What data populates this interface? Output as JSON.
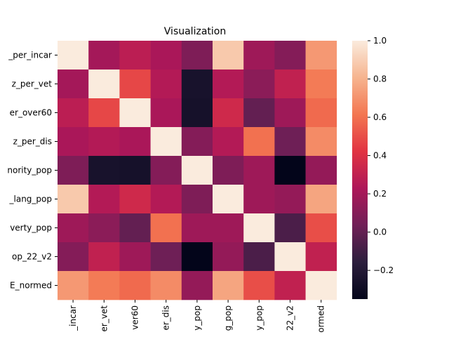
{
  "chart_data": {
    "type": "heatmap",
    "title": "Visualization",
    "row_labels": [
      "_per_incar",
      "z_per_vet",
      "er_over60",
      "z_per_dis",
      "nority_pop",
      "_lang_pop",
      "verty_pop",
      "op_22_v2",
      "E_normed"
    ],
    "column_labels": [
      "_incar",
      "er_vet",
      "ver60",
      "er_dis",
      "y_pop",
      "g_pop",
      "y_pop",
      "22_v2",
      "ormed"
    ],
    "values": [
      [
        1.0,
        0.2,
        0.28,
        0.22,
        0.08,
        0.88,
        0.18,
        0.1,
        0.72
      ],
      [
        0.2,
        1.0,
        0.48,
        0.25,
        -0.25,
        0.25,
        0.12,
        0.3,
        0.63
      ],
      [
        0.28,
        0.48,
        1.0,
        0.22,
        -0.26,
        0.35,
        0.0,
        0.18,
        0.58
      ],
      [
        0.22,
        0.25,
        0.22,
        1.0,
        0.1,
        0.25,
        0.6,
        0.03,
        0.68
      ],
      [
        0.08,
        -0.25,
        -0.26,
        0.1,
        1.0,
        0.08,
        0.18,
        -0.35,
        0.15
      ],
      [
        0.88,
        0.25,
        0.35,
        0.25,
        0.08,
        1.0,
        0.18,
        0.15,
        0.76
      ],
      [
        0.18,
        0.12,
        0.0,
        0.6,
        0.18,
        0.18,
        1.0,
        -0.07,
        0.5
      ],
      [
        0.1,
        0.3,
        0.18,
        0.03,
        -0.35,
        0.15,
        -0.07,
        1.0,
        0.3
      ],
      [
        0.72,
        0.63,
        0.58,
        0.68,
        0.15,
        0.76,
        0.5,
        0.3,
        1.0
      ]
    ],
    "colorbar": {
      "min": -0.35,
      "max": 1.0,
      "ticks": [
        -0.2,
        0.0,
        0.2,
        0.4,
        0.6,
        0.8,
        1.0
      ],
      "tick_labels": [
        "−0.2",
        "0.0",
        "0.2",
        "0.4",
        "0.6",
        "0.8",
        "1.0"
      ]
    },
    "colormap": [
      "#03051a",
      "#2c1e3d",
      "#701f57",
      "#ad1759",
      "#e13342",
      "#f37651",
      "#f6b48f",
      "#faebdd"
    ],
    "grid": false,
    "legend": "right colorbar"
  }
}
